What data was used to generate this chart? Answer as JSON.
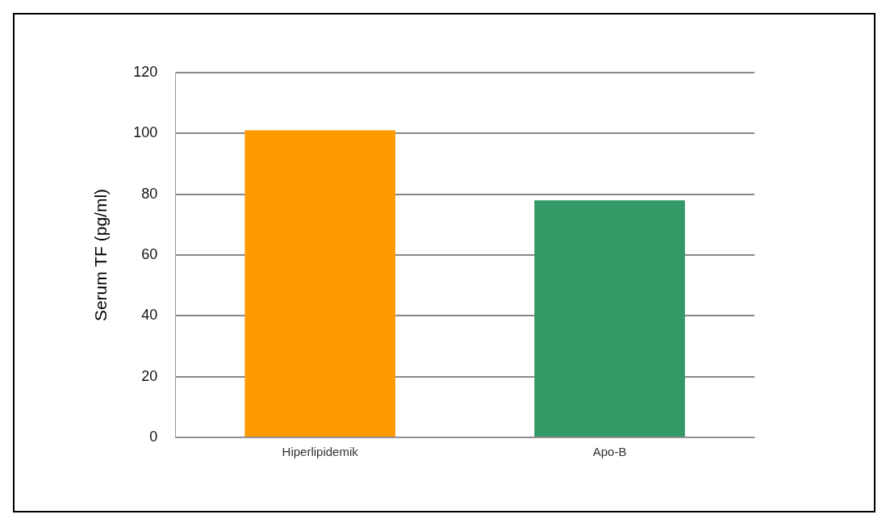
{
  "chart_data": {
    "type": "bar",
    "ylabel": "Serum TF (pg/ml)",
    "categories": [
      "Hiperlipidemik",
      "Apo-B"
    ],
    "values": [
      101,
      78
    ],
    "colors": [
      "#ff9900",
      "#339966"
    ],
    "ylim": [
      0,
      120
    ],
    "yticks": [
      0,
      20,
      40,
      60,
      80,
      100,
      120
    ],
    "grid": "y",
    "legend": false
  }
}
